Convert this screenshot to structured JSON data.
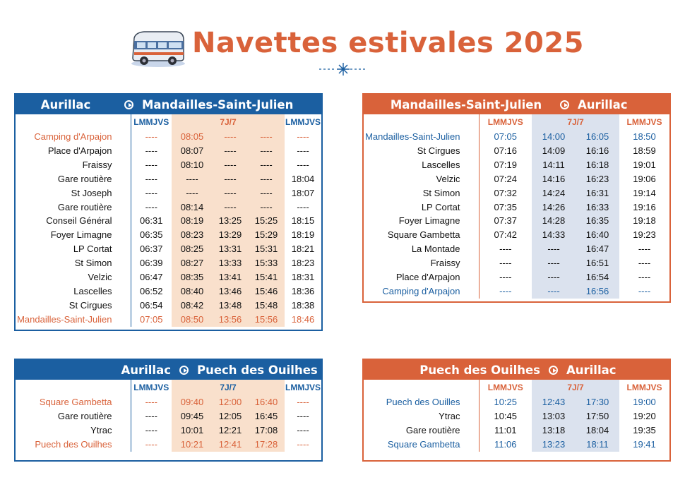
{
  "header": {
    "title": "Navettes estivales 2025",
    "bus_icon": "bus-icon",
    "ornament_icon": "ornament-icon"
  },
  "colors": {
    "blue": "#1b5fa1",
    "orange": "#d9623a",
    "orange_highlight": "#f9e0cc",
    "blue_highlight": "#dbe2ee"
  },
  "table1": {
    "from": "Aurillac",
    "to": "Mandailles-Saint-Julien",
    "cols": [
      "LMMJVS",
      "7J/7",
      "LMMJVS"
    ],
    "rows": [
      {
        "stop": "Camping d'Arpajon",
        "t": [
          "----",
          "08:05",
          "----",
          "----",
          "----"
        ]
      },
      {
        "stop": "Place d'Arpajon",
        "t": [
          "----",
          "08:07",
          "----",
          "----",
          "----"
        ]
      },
      {
        "stop": "Fraissy",
        "t": [
          "----",
          "08:10",
          "----",
          "----",
          "----"
        ]
      },
      {
        "stop": "Gare routière",
        "t": [
          "----",
          "----",
          "----",
          "----",
          "18:04"
        ]
      },
      {
        "stop": "St Joseph",
        "t": [
          "----",
          "----",
          "----",
          "----",
          "18:07"
        ]
      },
      {
        "stop": "Gare routière",
        "t": [
          "----",
          "08:14",
          "----",
          "----",
          "----"
        ]
      },
      {
        "stop": "Conseil Général",
        "t": [
          "06:31",
          "08:19",
          "13:25",
          "15:25",
          "18:15"
        ]
      },
      {
        "stop": "Foyer Limagne",
        "t": [
          "06:35",
          "08:23",
          "13:29",
          "15:29",
          "18:19"
        ]
      },
      {
        "stop": "LP Cortat",
        "t": [
          "06:37",
          "08:25",
          "13:31",
          "15:31",
          "18:21"
        ]
      },
      {
        "stop": "St Simon",
        "t": [
          "06:39",
          "08:27",
          "13:33",
          "15:33",
          "18:23"
        ]
      },
      {
        "stop": "Velzic",
        "t": [
          "06:47",
          "08:35",
          "13:41",
          "15:41",
          "18:31"
        ]
      },
      {
        "stop": "Lascelles",
        "t": [
          "06:52",
          "08:40",
          "13:46",
          "15:46",
          "18:36"
        ]
      },
      {
        "stop": "St Cirgues",
        "t": [
          "06:54",
          "08:42",
          "13:48",
          "15:48",
          "18:38"
        ]
      },
      {
        "stop": "Mandailles-Saint-Julien",
        "t": [
          "07:05",
          "08:50",
          "13:56",
          "15:56",
          "18:46"
        ]
      }
    ]
  },
  "table2": {
    "from": "Mandailles-Saint-Julien",
    "to": "Aurillac",
    "cols": [
      "LMMJVS",
      "7J/7",
      "LMMJVS"
    ],
    "rows": [
      {
        "stop": "Mandailles-Saint-Julien",
        "t": [
          "07:05",
          "14:00",
          "16:05",
          "18:50"
        ]
      },
      {
        "stop": "St Cirgues",
        "t": [
          "07:16",
          "14:09",
          "16:16",
          "18:59"
        ]
      },
      {
        "stop": "Lascelles",
        "t": [
          "07:19",
          "14:11",
          "16:18",
          "19:01"
        ]
      },
      {
        "stop": "Velzic",
        "t": [
          "07:24",
          "14:16",
          "16:23",
          "19:06"
        ]
      },
      {
        "stop": "St Simon",
        "t": [
          "07:32",
          "14:24",
          "16:31",
          "19:14"
        ]
      },
      {
        "stop": "LP Cortat",
        "t": [
          "07:35",
          "14:26",
          "16:33",
          "19:16"
        ]
      },
      {
        "stop": "Foyer Limagne",
        "t": [
          "07:37",
          "14:28",
          "16:35",
          "19:18"
        ]
      },
      {
        "stop": "Square Gambetta",
        "t": [
          "07:42",
          "14:33",
          "16:40",
          "19:23"
        ]
      },
      {
        "stop": "La Montade",
        "t": [
          "----",
          "----",
          "16:47",
          "----"
        ]
      },
      {
        "stop": "Fraissy",
        "t": [
          "----",
          "----",
          "16:51",
          "----"
        ]
      },
      {
        "stop": "Place d'Arpajon",
        "t": [
          "----",
          "----",
          "16:54",
          "----"
        ]
      },
      {
        "stop": "Camping d'Arpajon",
        "t": [
          "----",
          "----",
          "16:56",
          "----"
        ]
      }
    ]
  },
  "table3": {
    "from": "Aurillac",
    "to": "Puech des Ouilhes",
    "cols": [
      "LMMJVS",
      "7J/7",
      "LMMJVS"
    ],
    "rows": [
      {
        "stop": "Square Gambetta",
        "t": [
          "----",
          "09:40",
          "12:00",
          "16:40",
          "----"
        ]
      },
      {
        "stop": "Gare routière",
        "t": [
          "----",
          "09:45",
          "12:05",
          "16:45",
          "----"
        ]
      },
      {
        "stop": "Ytrac",
        "t": [
          "----",
          "10:01",
          "12:21",
          "17:08",
          "----"
        ]
      },
      {
        "stop": "Puech des Ouilhes",
        "t": [
          "----",
          "10:21",
          "12:41",
          "17:28",
          "----"
        ]
      }
    ]
  },
  "table4": {
    "from": "Puech des Ouilhes",
    "to": "Aurillac",
    "cols": [
      "LMMJVS",
      "7J/7",
      "LMMJVS"
    ],
    "rows": [
      {
        "stop": "Puech des Ouilles",
        "t": [
          "10:25",
          "12:43",
          "17:30",
          "19:00"
        ]
      },
      {
        "stop": "Ytrac",
        "t": [
          "10:45",
          "13:03",
          "17:50",
          "19:20"
        ]
      },
      {
        "stop": "Gare routière",
        "t": [
          "11:01",
          "13:18",
          "18:04",
          "19:35"
        ]
      },
      {
        "stop": "Square Gambetta",
        "t": [
          "11:06",
          "13:23",
          "18:11",
          "19:41"
        ]
      }
    ]
  }
}
